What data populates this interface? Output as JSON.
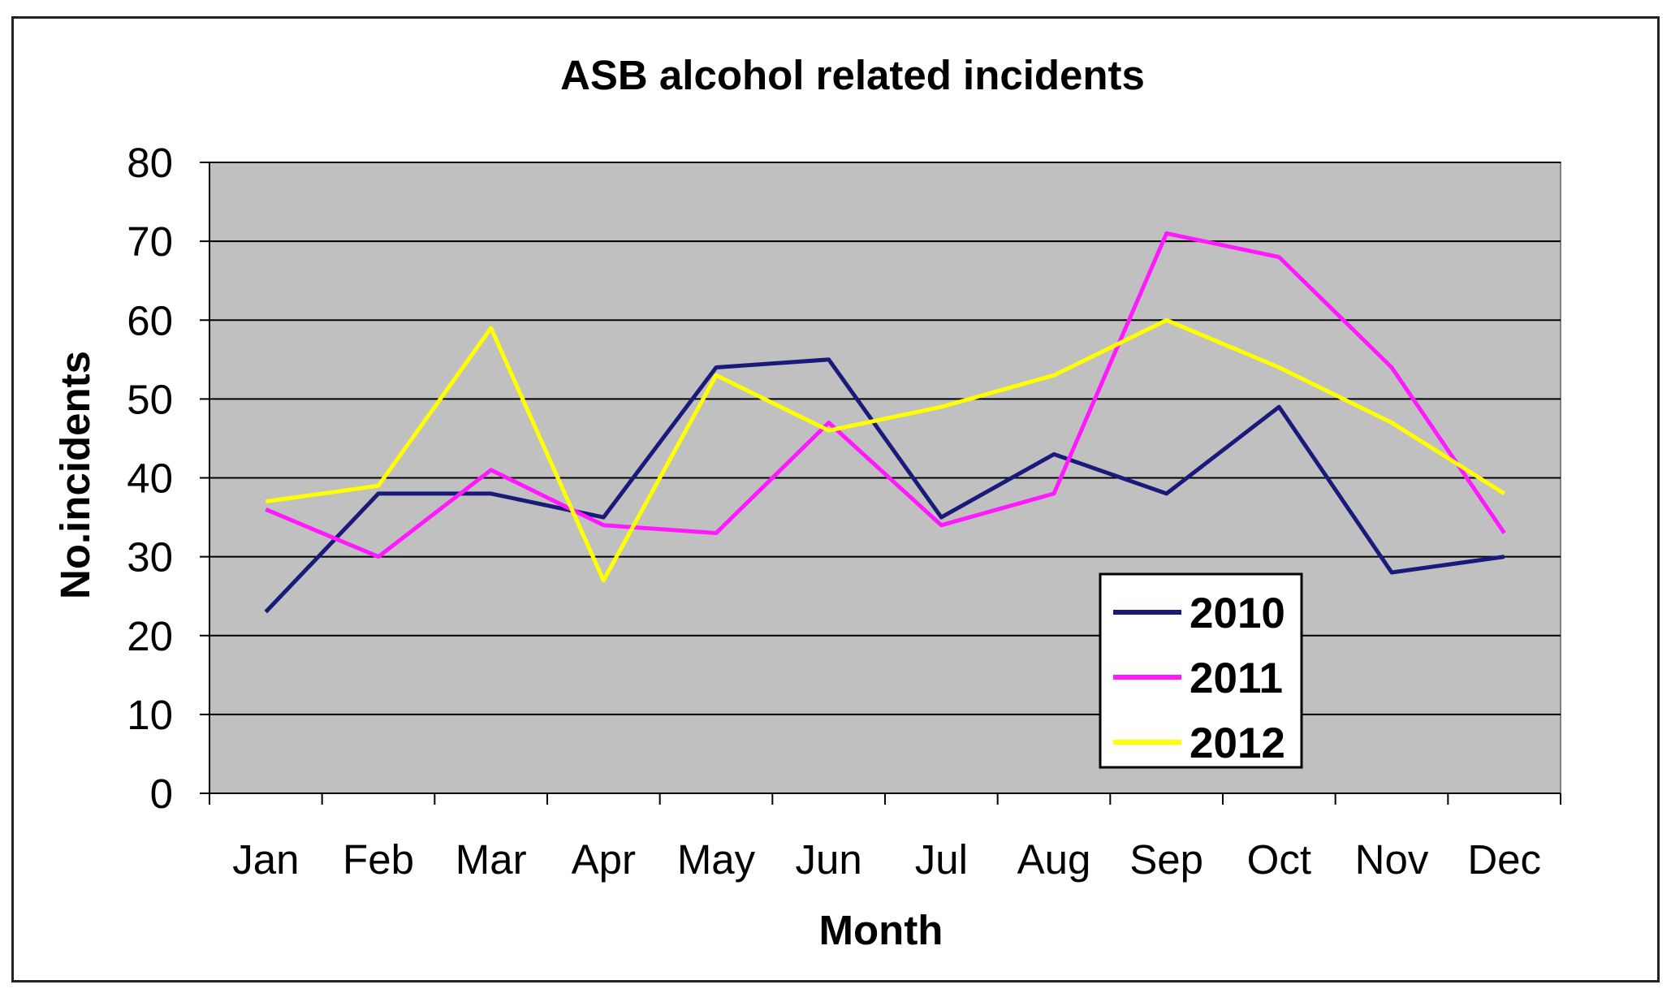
{
  "chart_data": {
    "type": "line",
    "title": "ASB alcohol related incidents",
    "xlabel": "Month",
    "ylabel": "No.incidents",
    "categories": [
      "Jan",
      "Feb",
      "Mar",
      "Apr",
      "May",
      "Jun",
      "Jul",
      "Aug",
      "Sep",
      "Oct",
      "Nov",
      "Dec"
    ],
    "ylim": [
      0,
      80
    ],
    "yticks": [
      "0",
      "10",
      "20",
      "30",
      "40",
      "50",
      "60",
      "70",
      "80"
    ],
    "grid": true,
    "legend_position": "bottom-right",
    "series": [
      {
        "name": "2010",
        "color": "#1a1a7a",
        "values": [
          23,
          38,
          38,
          35,
          54,
          55,
          35,
          43,
          38,
          49,
          28,
          30
        ]
      },
      {
        "name": "2011",
        "color": "#ff19ff",
        "values": [
          36,
          30,
          41,
          34,
          33,
          47,
          34,
          38,
          71,
          68,
          54,
          33
        ]
      },
      {
        "name": "2012",
        "color": "#ffff00",
        "values": [
          37,
          39,
          59,
          27,
          53,
          46,
          49,
          53,
          60,
          54,
          47,
          38
        ]
      }
    ]
  },
  "colors": {
    "plot_background": "#c0c0c0",
    "gridline": "#000000"
  }
}
